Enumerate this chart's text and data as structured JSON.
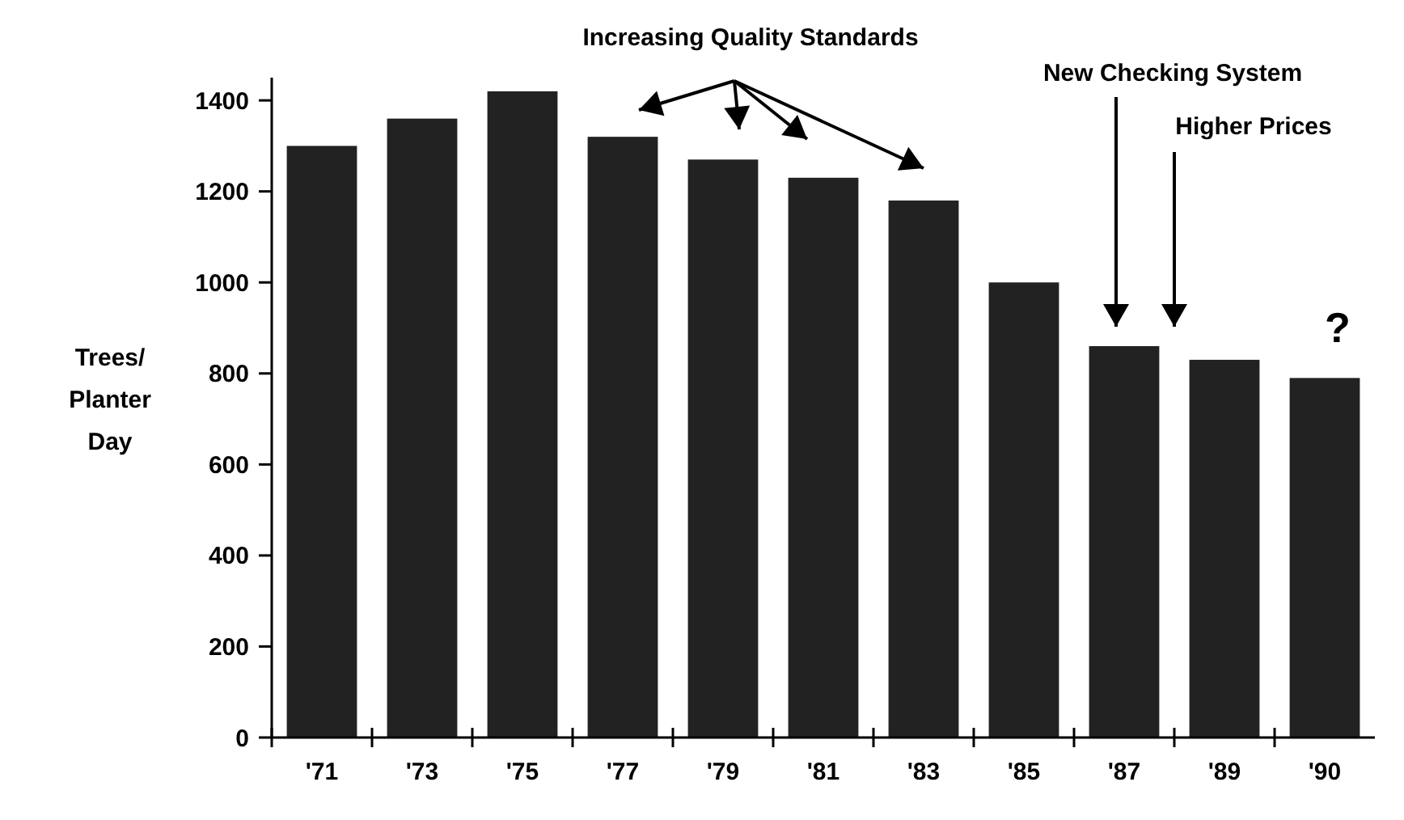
{
  "chart_data": {
    "type": "bar",
    "ylabel": "Trees/ Planter Day",
    "categories": [
      "'71",
      "'73",
      "'75",
      "'77",
      "'79",
      "'81",
      "'83",
      "'85",
      "'87",
      "'89",
      "'90"
    ],
    "values": [
      1300,
      1360,
      1420,
      1320,
      1270,
      1230,
      1180,
      1000,
      860,
      830,
      790
    ],
    "color": "#222222",
    "ylim": [
      0,
      1450
    ],
    "yticks": [
      0,
      200,
      400,
      600,
      800,
      1000,
      1200,
      1400
    ],
    "grid": false,
    "annotations": [
      "Increasing Quality Standards",
      "New Checking System",
      "Higher Prices",
      "?"
    ]
  }
}
